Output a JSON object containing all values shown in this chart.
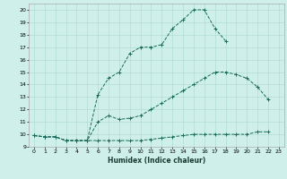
{
  "xlabel": "Humidex (Indice chaleur)",
  "bg_color": "#cff0ea",
  "grid_color": "#aad8d0",
  "line_color": "#1a6b5a",
  "xlim": [
    -0.5,
    23.5
  ],
  "ylim": [
    9,
    20.5
  ],
  "yticks": [
    9,
    10,
    11,
    12,
    13,
    14,
    15,
    16,
    17,
    18,
    19,
    20
  ],
  "xticks": [
    0,
    1,
    2,
    3,
    4,
    5,
    6,
    7,
    8,
    9,
    10,
    11,
    12,
    13,
    14,
    15,
    16,
    17,
    18,
    19,
    20,
    21,
    22,
    23
  ],
  "line1_x": [
    0,
    1,
    2,
    3,
    4,
    5,
    6,
    7,
    8,
    9,
    10,
    11,
    12,
    13,
    14,
    15,
    16,
    17,
    18,
    19,
    20,
    21,
    22
  ],
  "line1_y": [
    9.9,
    9.8,
    9.8,
    9.5,
    9.5,
    9.5,
    9.5,
    9.5,
    9.5,
    9.5,
    9.5,
    9.6,
    9.7,
    9.8,
    9.9,
    10.0,
    10.0,
    10.0,
    10.0,
    10.0,
    10.0,
    10.2,
    10.2
  ],
  "line2_x": [
    0,
    1,
    2,
    3,
    4,
    5,
    6,
    7,
    8,
    9,
    10,
    11,
    12,
    13,
    14,
    15,
    16,
    17,
    18,
    19,
    20,
    21,
    22
  ],
  "line2_y": [
    9.9,
    9.8,
    9.8,
    9.5,
    9.5,
    9.5,
    11.0,
    11.5,
    11.2,
    11.3,
    11.5,
    12.0,
    12.5,
    13.0,
    13.5,
    14.0,
    14.5,
    15.0,
    15.0,
    14.8,
    14.5,
    13.8,
    12.8
  ],
  "line3_x": [
    0,
    1,
    2,
    3,
    4,
    5,
    6,
    7,
    8,
    9,
    10,
    11,
    12,
    13,
    14,
    15,
    16,
    17,
    18
  ],
  "line3_y": [
    9.9,
    9.8,
    9.8,
    9.5,
    9.5,
    9.5,
    13.2,
    14.5,
    15.0,
    16.5,
    17.0,
    17.0,
    17.2,
    18.5,
    19.2,
    20.0,
    20.0,
    18.5,
    17.5
  ]
}
